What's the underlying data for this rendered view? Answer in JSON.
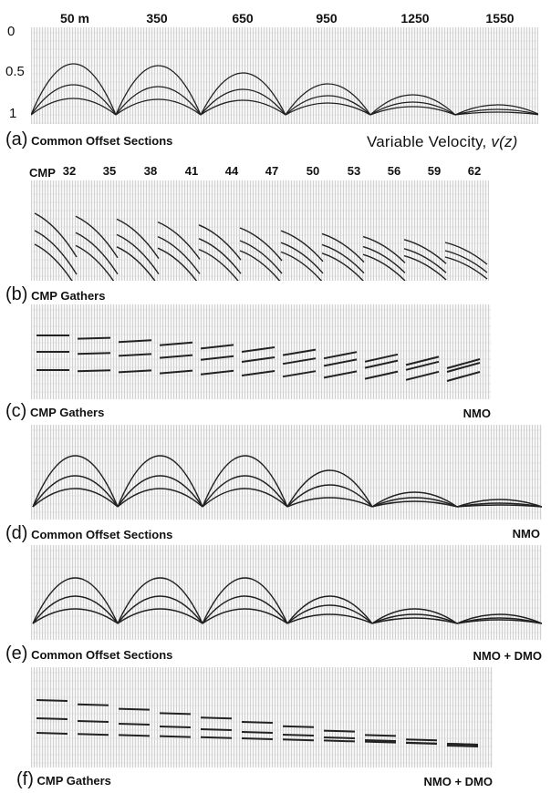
{
  "panel_a": {
    "letter": "(a)",
    "name": "Common Offset Sections",
    "offset_ticks": [
      "50 m",
      "350",
      "650",
      "950",
      "1250",
      "1550"
    ],
    "time_ticks": [
      "0",
      "0.5",
      "1"
    ],
    "velocity_label": "Variable Velocity, ",
    "velocity_symbol": "v(z)"
  },
  "panel_b": {
    "letter": "(b)",
    "name": "CMP Gathers",
    "cmp_prefix": "CMP",
    "cmp_ticks": [
      "32",
      "35",
      "38",
      "41",
      "44",
      "47",
      "50",
      "53",
      "56",
      "59",
      "62"
    ]
  },
  "panel_c": {
    "letter": "(c)",
    "name": "CMP Gathers",
    "process": "NMO"
  },
  "panel_d": {
    "letter": "(d)",
    "name": "Common Offset Sections",
    "process": "NMO"
  },
  "panel_e": {
    "letter": "(e)",
    "name": "Common Offset Sections",
    "process": "NMO + DMO"
  },
  "panel_f": {
    "letter": "(f)",
    "name": "CMP Gathers",
    "process": "NMO + DMO"
  }
}
